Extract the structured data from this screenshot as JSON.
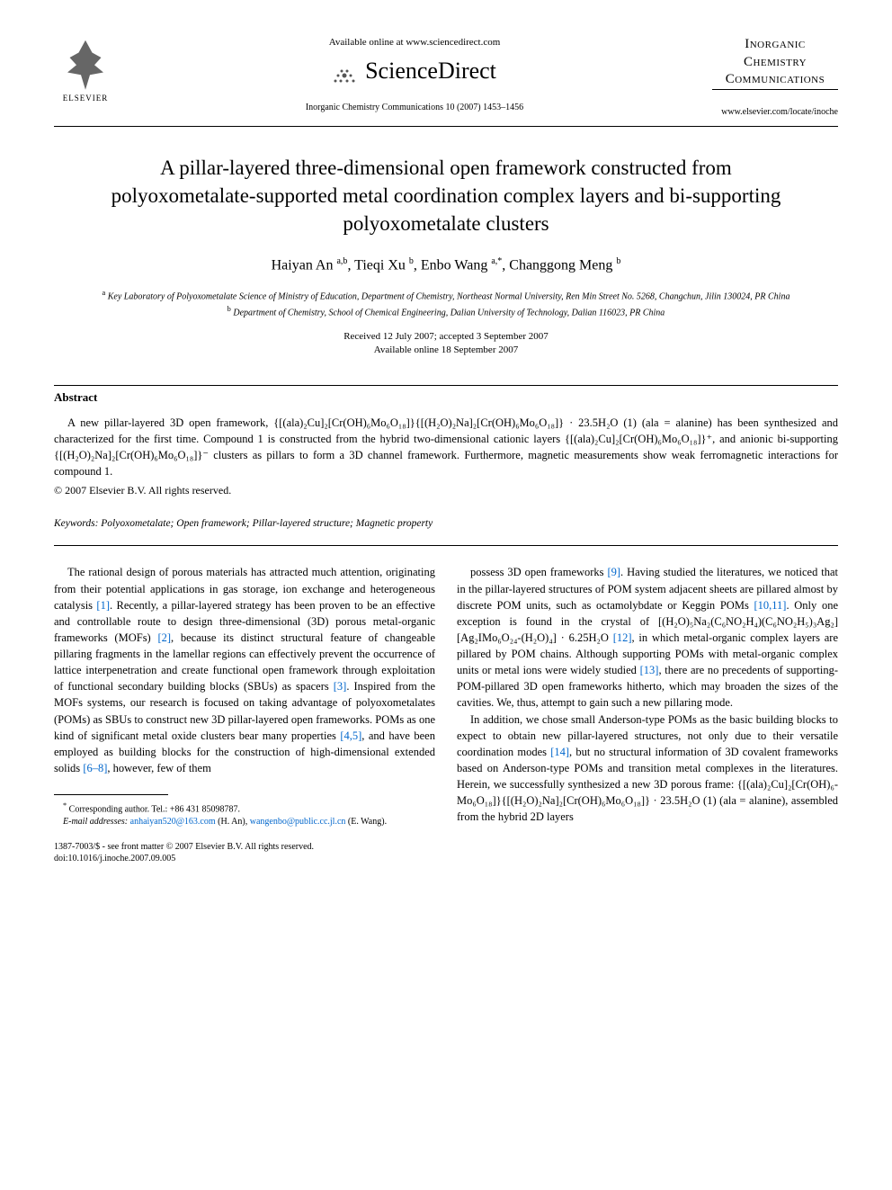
{
  "header": {
    "elsevier_label": "ELSEVIER",
    "available_online": "Available online at www.sciencedirect.com",
    "sciencedirect": "ScienceDirect",
    "journal_ref": "Inorganic Chemistry Communications 10 (2007) 1453–1456",
    "journal_title_line1": "Inorganic",
    "journal_title_line2": "Chemistry",
    "journal_title_line3": "Communications",
    "journal_url": "www.elsevier.com/locate/inoche"
  },
  "article": {
    "title": "A pillar-layered three-dimensional open framework constructed from polyoxometalate-supported metal coordination complex layers and bi-supporting polyoxometalate clusters",
    "authors_html": "Haiyan An <sup>a,b</sup>, Tieqi Xu <sup>b</sup>, Enbo Wang <sup>a,*</sup>, Changgong Meng <sup>b</sup>",
    "affiliation_a": "Key Laboratory of Polyoxometalate Science of Ministry of Education, Department of Chemistry, Northeast Normal University, Ren Min Street No. 5268, Changchun, Jilin 130024, PR China",
    "affiliation_b": "Department of Chemistry, School of Chemical Engineering, Dalian University of Technology, Dalian 116023, PR China",
    "received": "Received 12 July 2007; accepted 3 September 2007",
    "available": "Available online 18 September 2007"
  },
  "abstract": {
    "heading": "Abstract",
    "text": "A new pillar-layered 3D open framework, {[(ala)₂Cu]₂[Cr(OH)₆Mo₆O₁₈]}{[(H₂O)₂Na]₂[Cr(OH)₆Mo₆O₁₈]} · 23.5H₂O (1) (ala = alanine) has been synthesized and characterized for the first time. Compound 1 is constructed from the hybrid two-dimensional cationic layers {[(ala)₂Cu]₂[Cr(OH)₆Mo₆O₁₈]}⁺, and anionic bi-supporting {[(H₂O)₂Na]₂[Cr(OH)₆Mo₆O₁₈]}⁻ clusters as pillars to form a 3D channel framework. Furthermore, magnetic measurements show weak ferromagnetic interactions for compound 1.",
    "copyright": "© 2007 Elsevier B.V. All rights reserved."
  },
  "keywords": {
    "label": "Keywords:",
    "text": "Polyoxometalate; Open framework; Pillar-layered structure; Magnetic property"
  },
  "body": {
    "col1_p1": "The rational design of porous materials has attracted much attention, originating from their potential applications in gas storage, ion exchange and heterogeneous catalysis [1]. Recently, a pillar-layered strategy has been proven to be an effective and controllable route to design three-dimensional (3D) porous metal-organic frameworks (MOFs) [2], because its distinct structural feature of changeable pillaring fragments in the lamellar regions can effectively prevent the occurrence of lattice interpenetration and create functional open framework through exploitation of functional secondary building blocks (SBUs) as spacers [3]. Inspired from the MOFs systems, our research is focused on taking advantage of polyoxometalates (POMs) as SBUs to construct new 3D pillar-layered open frameworks. POMs as one kind of significant metal oxide clusters bear many properties [4,5], and have been employed as building blocks for the construction of high-dimensional extended solids [6–8], however, few of them",
    "col2_p1": "possess 3D open frameworks [9]. Having studied the literatures, we noticed that in the pillar-layered structures of POM system adjacent sheets are pillared almost by discrete POM units, such as octamolybdate or Keggin POMs [10,11]. Only one exception is found in the crystal of [(H₂O)₅Na₂(C₆NO₂H₄)(C₆NO₂H₅)₃Ag₂][Ag₂IMo₆O₂₄-(H₂O)₄] · 6.25H₂O [12], in which metal-organic complex layers are pillared by POM chains. Although supporting POMs with metal-organic complex units or metal ions were widely studied [13], there are no precedents of supporting-POM-pillared 3D open frameworks hitherto, which may broaden the sizes of the cavities. We, thus, attempt to gain such a new pillaring mode.",
    "col2_p2": "In addition, we chose small Anderson-type POMs as the basic building blocks to expect to obtain new pillar-layered structures, not only due to their versatile coordination modes [14], but no structural information of 3D covalent frameworks based on Anderson-type POMs and transition metal complexes in the literatures. Herein, we successfully synthesized a new 3D porous frame: {[(ala)₂Cu]₂[Cr(OH)₆-Mo₆O₁₈]}{[(H₂O)₂Na]₂[Cr(OH)₆Mo₆O₁₈]} · 23.5H₂O (1) (ala = alanine), assembled from the hybrid 2D layers"
  },
  "footnotes": {
    "corresponding": "Corresponding author. Tel.: +86 431 85098787.",
    "email_label": "E-mail addresses:",
    "email1": "anhaiyan520@163.com",
    "email1_who": "(H. An),",
    "email2": "wangenbo@public.cc.jl.cn",
    "email2_who": "(E. Wang)."
  },
  "bottom": {
    "issn_line": "1387-7003/$ - see front matter © 2007 Elsevier B.V. All rights reserved.",
    "doi_line": "doi:10.1016/j.inoche.2007.09.005"
  },
  "refs": {
    "r1": "[1]",
    "r2": "[2]",
    "r3": "[3]",
    "r45": "[4,5]",
    "r68": "[6–8]",
    "r9": "[9]",
    "r1011": "[10,11]",
    "r12": "[12]",
    "r13": "[13]",
    "r14": "[14]"
  },
  "colors": {
    "link": "#0066cc",
    "text": "#000000",
    "background": "#ffffff"
  },
  "typography": {
    "title_fontsize": 23,
    "body_fontsize": 12.5,
    "author_fontsize": 16,
    "footnote_fontsize": 10
  }
}
